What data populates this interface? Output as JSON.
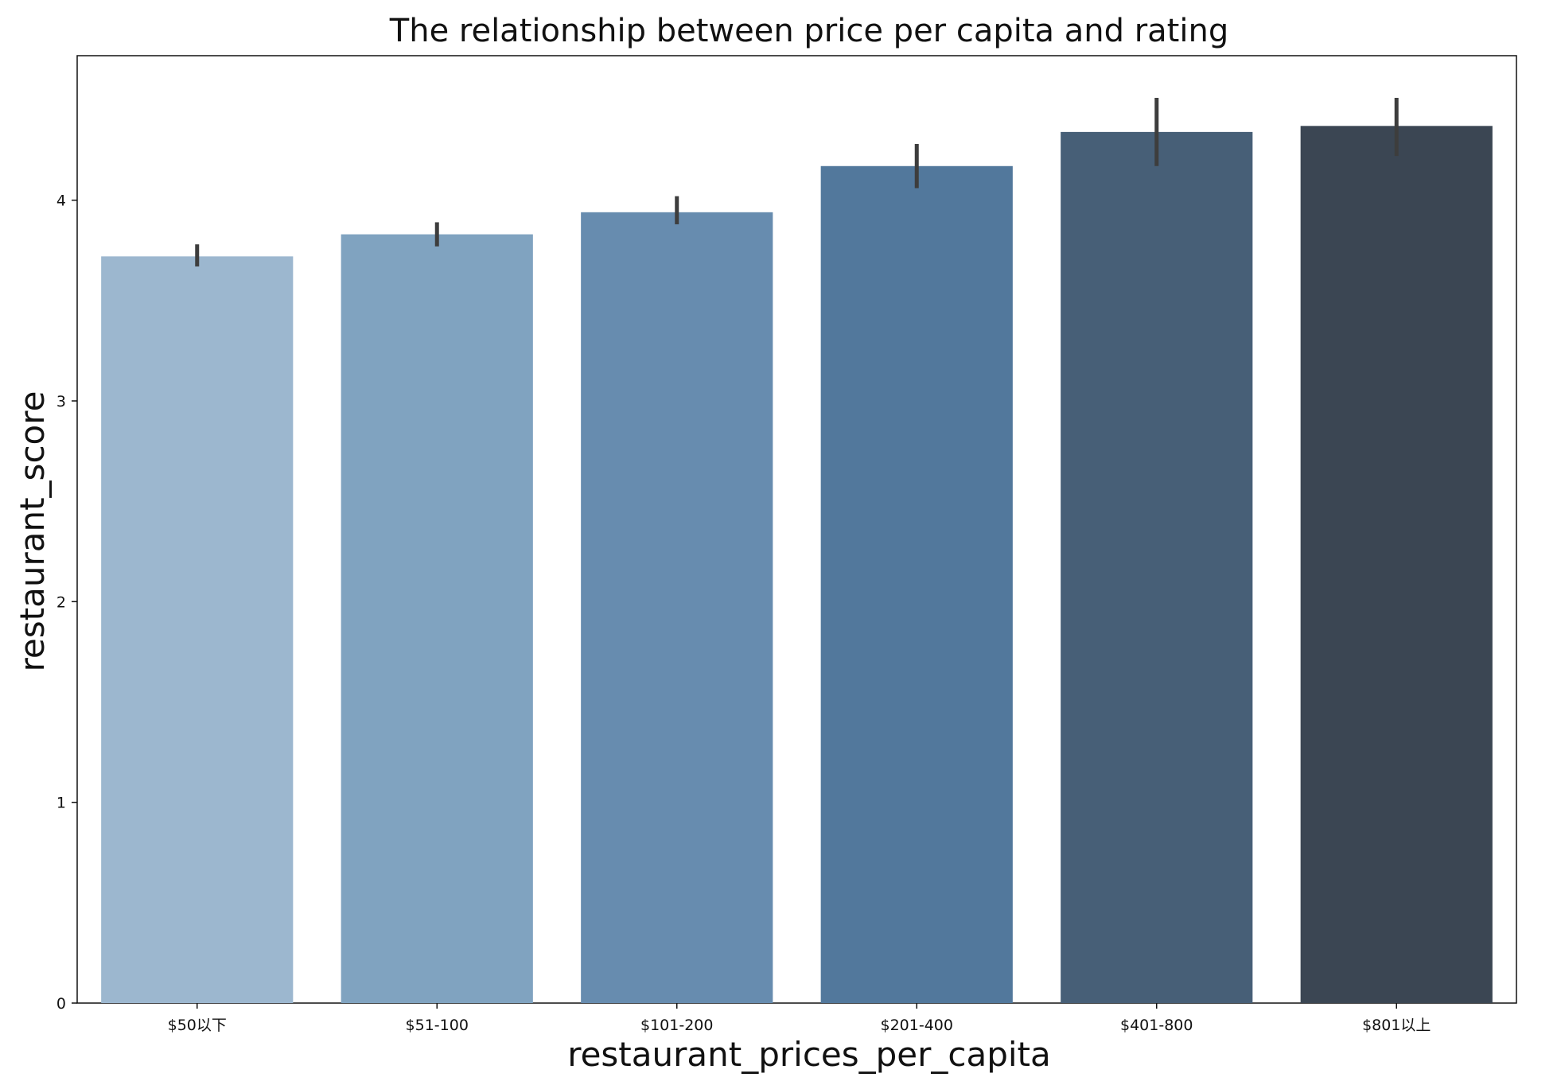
{
  "chart_data": {
    "type": "bar",
    "title": "The relationship between price per capita and rating",
    "xlabel": "restaurant_prices_per_capita",
    "ylabel": "restaurant_score",
    "categories": [
      "$50以下",
      "$51-100",
      "$101-200",
      "$201-400",
      "$401-800",
      "$801以上"
    ],
    "values": [
      3.72,
      3.83,
      3.94,
      4.17,
      4.34,
      4.37
    ],
    "error_low": [
      3.67,
      3.77,
      3.88,
      4.06,
      4.17,
      4.22
    ],
    "error_high": [
      3.78,
      3.89,
      4.02,
      4.28,
      4.51,
      4.51
    ],
    "colors": [
      "#9cb7cf",
      "#80a3c0",
      "#678caf",
      "#52789c",
      "#475f77",
      "#3b4653"
    ],
    "yticks": [
      0,
      1,
      2,
      3,
      4
    ],
    "ylim": [
      0,
      4.72
    ],
    "grid": false,
    "legend": "none"
  }
}
